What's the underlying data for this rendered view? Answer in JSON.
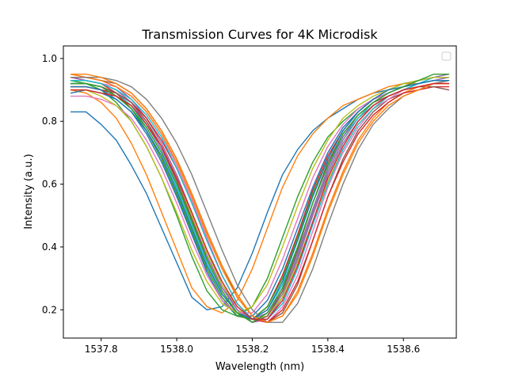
{
  "chart_data": {
    "type": "line",
    "title": "Transmission Curves for 4K Microdisk",
    "xlabel": "Wavelength (nm)",
    "ylabel": "Intensity (a.u.)",
    "xlim": [
      1537.7,
      1538.74
    ],
    "ylim": [
      0.11,
      1.04
    ],
    "xticks": [
      1537.8,
      1538.0,
      1538.2,
      1538.4,
      1538.6
    ],
    "xtick_labels": [
      "1537.8",
      "1538.0",
      "1538.2",
      "1538.4",
      "1538.6"
    ],
    "yticks": [
      0.2,
      0.4,
      0.6,
      0.8,
      1.0
    ],
    "ytick_labels": [
      "0.2",
      "0.4",
      "0.6",
      "0.8",
      "1.0"
    ],
    "grid": false,
    "legend": {
      "position": "top-right",
      "entries": []
    },
    "palette": [
      "#1f77b4",
      "#ff7f0e",
      "#2ca02c",
      "#d62728",
      "#9467bd",
      "#8c564b",
      "#e377c2",
      "#7f7f7f",
      "#bcbd22",
      "#17becf"
    ],
    "x": [
      1537.72,
      1537.76,
      1537.8,
      1537.84,
      1537.88,
      1537.92,
      1537.96,
      1538.0,
      1538.04,
      1538.08,
      1538.12,
      1538.16,
      1538.2,
      1538.24,
      1538.28,
      1538.32,
      1538.36,
      1538.4,
      1538.44,
      1538.48,
      1538.52,
      1538.56,
      1538.6,
      1538.64,
      1538.68,
      1538.72
    ],
    "series": [
      {
        "values": [
          0.83,
          0.83,
          0.79,
          0.74,
          0.66,
          0.57,
          0.46,
          0.35,
          0.24,
          0.2,
          0.21,
          0.27,
          0.38,
          0.51,
          0.63,
          0.71,
          0.77,
          0.81,
          0.84,
          0.87,
          0.89,
          0.9,
          0.92,
          0.93,
          0.94,
          0.94
        ]
      },
      {
        "values": [
          0.9,
          0.89,
          0.86,
          0.81,
          0.73,
          0.63,
          0.51,
          0.39,
          0.27,
          0.21,
          0.19,
          0.23,
          0.33,
          0.46,
          0.59,
          0.69,
          0.76,
          0.81,
          0.85,
          0.87,
          0.89,
          0.91,
          0.92,
          0.92,
          0.93,
          0.93
        ]
      },
      {
        "values": [
          0.92,
          0.92,
          0.9,
          0.86,
          0.8,
          0.72,
          0.62,
          0.5,
          0.37,
          0.26,
          0.2,
          0.18,
          0.21,
          0.3,
          0.43,
          0.56,
          0.67,
          0.75,
          0.8,
          0.84,
          0.87,
          0.89,
          0.91,
          0.92,
          0.93,
          0.93
        ]
      },
      {
        "values": [
          0.94,
          0.93,
          0.92,
          0.89,
          0.84,
          0.77,
          0.68,
          0.57,
          0.45,
          0.33,
          0.24,
          0.18,
          0.17,
          0.21,
          0.31,
          0.44,
          0.58,
          0.69,
          0.77,
          0.83,
          0.87,
          0.89,
          0.91,
          0.92,
          0.93,
          0.93
        ]
      },
      {
        "values": [
          0.95,
          0.94,
          0.93,
          0.91,
          0.87,
          0.81,
          0.73,
          0.63,
          0.51,
          0.39,
          0.28,
          0.2,
          0.16,
          0.17,
          0.24,
          0.36,
          0.5,
          0.63,
          0.73,
          0.8,
          0.85,
          0.88,
          0.9,
          0.92,
          0.93,
          0.94
        ]
      },
      {
        "values": [
          0.94,
          0.94,
          0.93,
          0.92,
          0.89,
          0.84,
          0.77,
          0.68,
          0.57,
          0.45,
          0.34,
          0.24,
          0.18,
          0.16,
          0.19,
          0.28,
          0.42,
          0.56,
          0.68,
          0.77,
          0.83,
          0.87,
          0.89,
          0.91,
          0.92,
          0.93
        ]
      },
      {
        "values": [
          0.93,
          0.93,
          0.92,
          0.91,
          0.88,
          0.83,
          0.76,
          0.66,
          0.55,
          0.43,
          0.31,
          0.22,
          0.17,
          0.16,
          0.21,
          0.31,
          0.45,
          0.59,
          0.7,
          0.78,
          0.84,
          0.87,
          0.9,
          0.91,
          0.92,
          0.92
        ]
      },
      {
        "values": [
          0.91,
          0.91,
          0.9,
          0.88,
          0.85,
          0.79,
          0.71,
          0.61,
          0.49,
          0.37,
          0.27,
          0.2,
          0.16,
          0.18,
          0.25,
          0.37,
          0.51,
          0.64,
          0.74,
          0.81,
          0.85,
          0.88,
          0.9,
          0.91,
          0.92,
          0.92
        ]
      },
      {
        "values": [
          0.93,
          0.93,
          0.92,
          0.9,
          0.86,
          0.8,
          0.72,
          0.62,
          0.5,
          0.38,
          0.28,
          0.21,
          0.17,
          0.18,
          0.24,
          0.35,
          0.48,
          0.61,
          0.71,
          0.79,
          0.84,
          0.88,
          0.9,
          0.92,
          0.93,
          0.93
        ]
      },
      {
        "values": [
          0.92,
          0.92,
          0.91,
          0.89,
          0.85,
          0.78,
          0.7,
          0.59,
          0.47,
          0.35,
          0.25,
          0.19,
          0.17,
          0.2,
          0.28,
          0.4,
          0.54,
          0.66,
          0.75,
          0.81,
          0.86,
          0.89,
          0.91,
          0.92,
          0.94,
          0.94
        ]
      },
      {
        "values": [
          0.89,
          0.9,
          0.89,
          0.87,
          0.83,
          0.76,
          0.67,
          0.56,
          0.44,
          0.32,
          0.23,
          0.18,
          0.18,
          0.23,
          0.33,
          0.46,
          0.59,
          0.7,
          0.78,
          0.83,
          0.87,
          0.89,
          0.91,
          0.92,
          0.93,
          0.93
        ]
      },
      {
        "values": [
          0.95,
          0.94,
          0.93,
          0.91,
          0.88,
          0.83,
          0.76,
          0.67,
          0.56,
          0.44,
          0.33,
          0.24,
          0.18,
          0.16,
          0.18,
          0.26,
          0.38,
          0.52,
          0.64,
          0.74,
          0.81,
          0.86,
          0.89,
          0.91,
          0.92,
          0.92
        ]
      },
      {
        "values": [
          0.93,
          0.92,
          0.91,
          0.88,
          0.84,
          0.77,
          0.68,
          0.57,
          0.45,
          0.33,
          0.24,
          0.18,
          0.17,
          0.21,
          0.3,
          0.43,
          0.57,
          0.68,
          0.77,
          0.83,
          0.87,
          0.9,
          0.92,
          0.93,
          0.94,
          0.94
        ]
      },
      {
        "values": [
          0.91,
          0.91,
          0.9,
          0.89,
          0.86,
          0.81,
          0.74,
          0.65,
          0.54,
          0.42,
          0.31,
          0.22,
          0.17,
          0.16,
          0.2,
          0.29,
          0.42,
          0.56,
          0.67,
          0.76,
          0.82,
          0.86,
          0.89,
          0.9,
          0.91,
          0.91
        ]
      },
      {
        "values": [
          0.94,
          0.93,
          0.92,
          0.9,
          0.86,
          0.79,
          0.71,
          0.61,
          0.49,
          0.37,
          0.27,
          0.2,
          0.17,
          0.19,
          0.26,
          0.38,
          0.52,
          0.65,
          0.75,
          0.82,
          0.86,
          0.89,
          0.91,
          0.93,
          0.94,
          0.95
        ]
      },
      {
        "values": [
          0.92,
          0.92,
          0.91,
          0.89,
          0.86,
          0.8,
          0.72,
          0.61,
          0.49,
          0.36,
          0.26,
          0.19,
          0.16,
          0.18,
          0.26,
          0.39,
          0.54,
          0.67,
          0.76,
          0.82,
          0.86,
          0.88,
          0.9,
          0.91,
          0.91,
          0.9
        ]
      },
      {
        "values": [
          0.88,
          0.88,
          0.87,
          0.85,
          0.81,
          0.74,
          0.65,
          0.54,
          0.42,
          0.31,
          0.23,
          0.19,
          0.19,
          0.25,
          0.36,
          0.49,
          0.62,
          0.72,
          0.79,
          0.84,
          0.87,
          0.89,
          0.91,
          0.92,
          0.93,
          0.93
        ]
      },
      {
        "values": [
          0.94,
          0.94,
          0.94,
          0.93,
          0.91,
          0.87,
          0.81,
          0.73,
          0.63,
          0.51,
          0.39,
          0.28,
          0.2,
          0.16,
          0.16,
          0.22,
          0.33,
          0.47,
          0.6,
          0.71,
          0.79,
          0.84,
          0.88,
          0.9,
          0.92,
          0.93
        ]
      },
      {
        "values": [
          0.9,
          0.9,
          0.88,
          0.85,
          0.8,
          0.72,
          0.62,
          0.51,
          0.39,
          0.29,
          0.22,
          0.19,
          0.21,
          0.28,
          0.4,
          0.53,
          0.65,
          0.74,
          0.81,
          0.85,
          0.88,
          0.9,
          0.92,
          0.93,
          0.94,
          0.94
        ]
      },
      {
        "values": [
          0.93,
          0.93,
          0.92,
          0.9,
          0.87,
          0.82,
          0.75,
          0.65,
          0.54,
          0.42,
          0.31,
          0.22,
          0.17,
          0.17,
          0.22,
          0.33,
          0.47,
          0.6,
          0.71,
          0.79,
          0.84,
          0.88,
          0.9,
          0.92,
          0.93,
          0.93
        ]
      },
      {
        "values": [
          0.91,
          0.91,
          0.9,
          0.87,
          0.83,
          0.77,
          0.69,
          0.58,
          0.46,
          0.34,
          0.25,
          0.19,
          0.17,
          0.2,
          0.29,
          0.42,
          0.56,
          0.68,
          0.77,
          0.83,
          0.87,
          0.9,
          0.91,
          0.92,
          0.93,
          0.93
        ]
      },
      {
        "values": [
          0.95,
          0.95,
          0.94,
          0.92,
          0.89,
          0.84,
          0.77,
          0.68,
          0.57,
          0.45,
          0.34,
          0.25,
          0.18,
          0.16,
          0.18,
          0.25,
          0.37,
          0.51,
          0.63,
          0.73,
          0.8,
          0.85,
          0.88,
          0.9,
          0.92,
          0.92
        ]
      },
      {
        "values": [
          0.92,
          0.92,
          0.91,
          0.88,
          0.84,
          0.78,
          0.7,
          0.6,
          0.48,
          0.36,
          0.26,
          0.19,
          0.16,
          0.19,
          0.27,
          0.4,
          0.54,
          0.66,
          0.76,
          0.82,
          0.86,
          0.89,
          0.91,
          0.93,
          0.95,
          0.95
        ]
      },
      {
        "values": [
          0.9,
          0.9,
          0.89,
          0.88,
          0.85,
          0.79,
          0.72,
          0.62,
          0.51,
          0.39,
          0.29,
          0.21,
          0.17,
          0.17,
          0.23,
          0.34,
          0.48,
          0.62,
          0.72,
          0.8,
          0.85,
          0.88,
          0.9,
          0.91,
          0.92,
          0.92
        ]
      }
    ]
  }
}
